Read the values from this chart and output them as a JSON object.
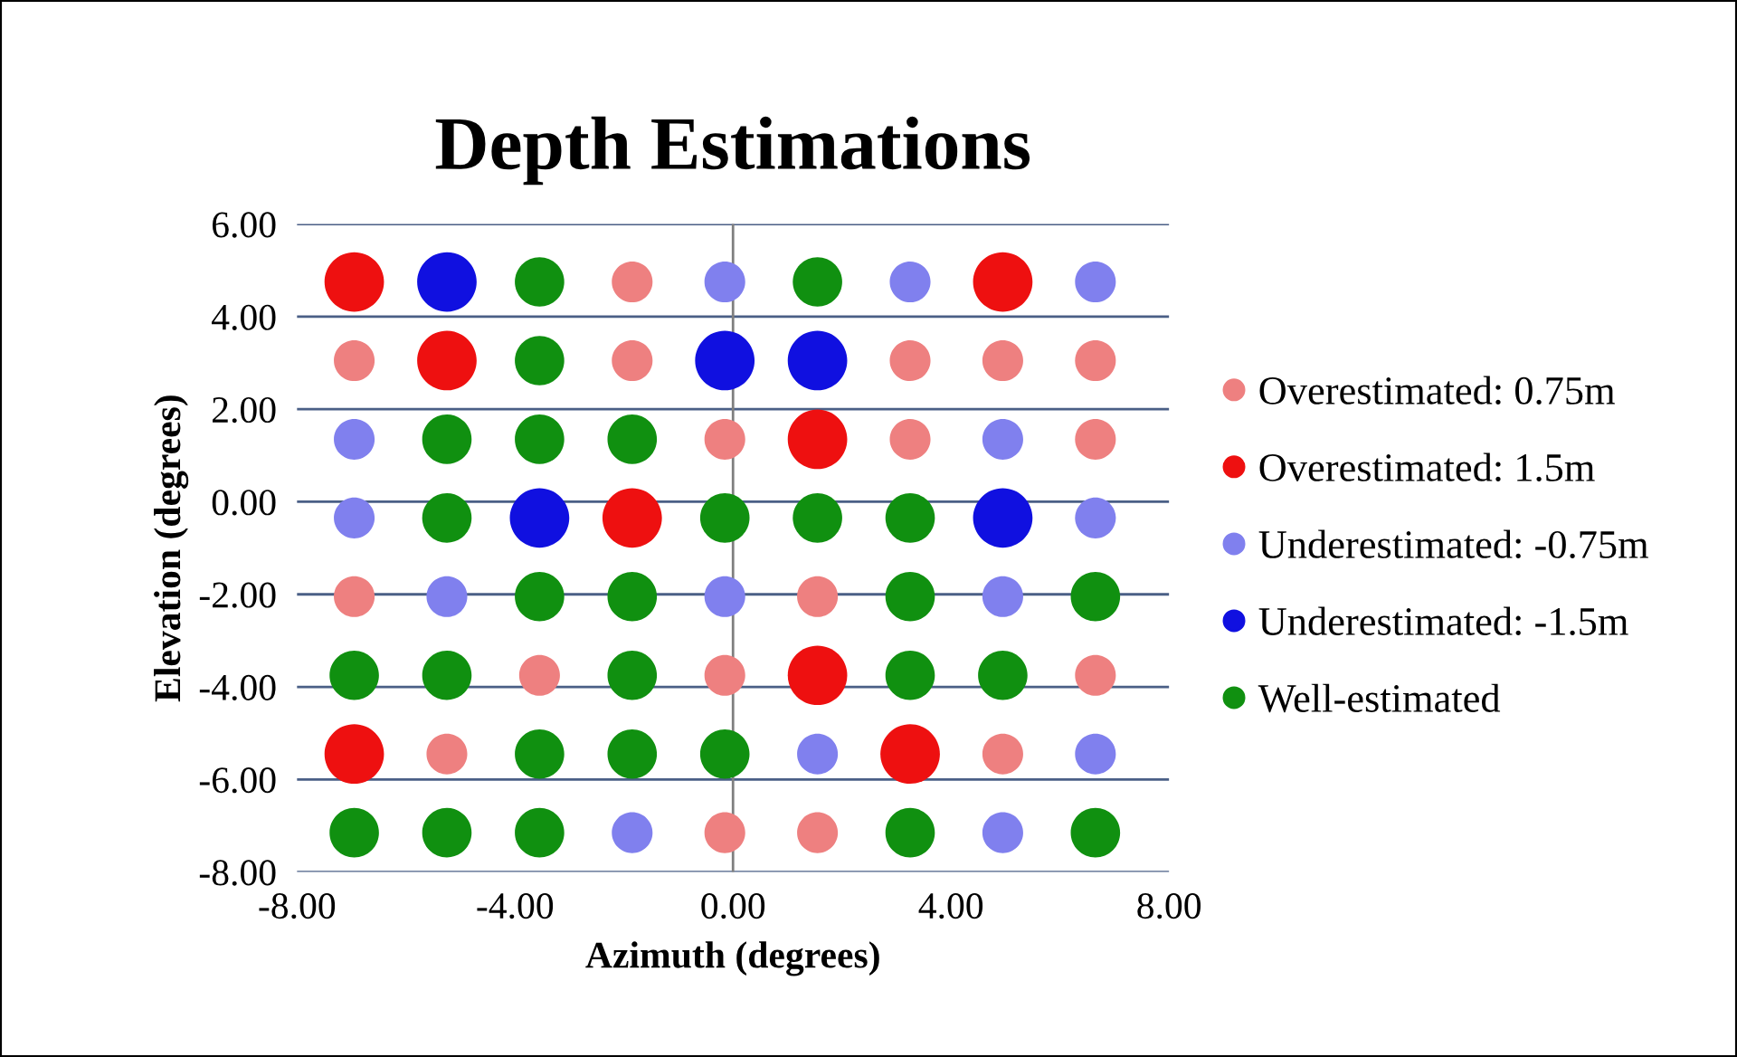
{
  "chart_data": {
    "type": "bubble",
    "title": "Depth Estimations",
    "xlabel": "Azimuth (degrees)",
    "ylabel": "Elevation (degrees)",
    "xlim": [
      -8,
      8
    ],
    "ylim": [
      -8,
      6
    ],
    "xticks": [
      {
        "value": -8,
        "label": "-8.00"
      },
      {
        "value": -4,
        "label": "-4.00"
      },
      {
        "value": 0,
        "label": "0.00"
      },
      {
        "value": 4,
        "label": "4.00"
      },
      {
        "value": 8,
        "label": "8.00"
      }
    ],
    "yticks": [
      {
        "value": -8,
        "label": "-8.00"
      },
      {
        "value": -6,
        "label": "-6.00"
      },
      {
        "value": -4,
        "label": "-4.00"
      },
      {
        "value": -2,
        "label": "-2.00"
      },
      {
        "value": 0,
        "label": "0.00"
      },
      {
        "value": 2,
        "label": "2.00"
      },
      {
        "value": 4,
        "label": "4.00"
      },
      {
        "value": 6,
        "label": "6.00"
      }
    ],
    "grid": "y",
    "legend": "right",
    "marker": "circle",
    "ref_lines": [
      {
        "axis": "x",
        "value": 0,
        "color": "#7f7f7f"
      }
    ],
    "series": [
      {
        "name": "Overestimated: 0.75m",
        "color": "#ee8080",
        "x": [
          -1.85,
          -6.95,
          -1.85,
          3.25,
          4.95,
          6.65,
          -0.15,
          3.25,
          6.65,
          -6.95,
          1.55,
          -3.55,
          -0.15,
          6.65,
          -5.25,
          4.95,
          -0.15,
          1.55
        ],
        "values": [
          4.75,
          3.05,
          3.05,
          3.05,
          3.05,
          3.05,
          1.35,
          1.35,
          1.35,
          -2.05,
          -2.05,
          -3.75,
          -3.75,
          -3.75,
          -5.45,
          -5.45,
          -7.15,
          -7.15
        ],
        "sizes": [
          0.47,
          0.47,
          0.47,
          0.47,
          0.47,
          0.47,
          0.47,
          0.47,
          0.47,
          0.47,
          0.47,
          0.47,
          0.47,
          0.47,
          0.47,
          0.47,
          0.47,
          0.47
        ]
      },
      {
        "name": "Overestimated: 1.5m",
        "color": "#ee1010",
        "x": [
          -6.95,
          4.95,
          -5.25,
          1.55,
          -1.85,
          1.55,
          -6.95,
          3.25
        ],
        "values": [
          4.75,
          4.75,
          3.05,
          1.35,
          -0.35,
          -3.75,
          -5.45,
          -5.45
        ],
        "sizes": [
          1,
          1,
          1,
          1,
          1,
          1,
          1,
          1
        ]
      },
      {
        "name": "Underestimated: -0.75m",
        "color": "#8080ee",
        "x": [
          -0.15,
          3.25,
          6.65,
          -6.95,
          4.95,
          -6.95,
          6.65,
          -5.25,
          -0.15,
          4.95,
          1.55,
          6.65,
          -1.85,
          4.95
        ],
        "values": [
          4.75,
          4.75,
          4.75,
          1.35,
          1.35,
          -0.35,
          -0.35,
          -2.05,
          -2.05,
          -2.05,
          -5.45,
          -5.45,
          -7.15,
          -7.15
        ],
        "sizes": [
          0.47,
          0.47,
          0.47,
          0.47,
          0.47,
          0.47,
          0.47,
          0.47,
          0.47,
          0.47,
          0.47,
          0.47,
          0.47,
          0.47
        ]
      },
      {
        "name": "Underestimated: -1.5m",
        "color": "#1010e0",
        "x": [
          -5.25,
          -0.15,
          1.55,
          -3.55,
          4.95
        ],
        "values": [
          4.75,
          3.05,
          3.05,
          -0.35,
          -0.35
        ],
        "sizes": [
          1,
          1,
          1,
          1,
          1
        ]
      },
      {
        "name": "Well-estimated",
        "color": "#109010",
        "x": [
          -3.55,
          1.55,
          -3.55,
          -5.25,
          -3.55,
          -1.85,
          -5.25,
          -0.15,
          1.55,
          3.25,
          -3.55,
          -1.85,
          3.25,
          6.65,
          -6.95,
          -5.25,
          -1.85,
          3.25,
          4.95,
          -3.55,
          -1.85,
          -0.15,
          -6.95,
          -5.25,
          -3.55,
          3.25,
          6.65
        ],
        "values": [
          4.75,
          4.75,
          3.05,
          1.35,
          1.35,
          1.35,
          -0.35,
          -0.35,
          -0.35,
          -0.35,
          -2.05,
          -2.05,
          -2.05,
          -2.05,
          -3.75,
          -3.75,
          -3.75,
          -3.75,
          -3.75,
          -5.45,
          -5.45,
          -5.45,
          -7.15,
          -7.15,
          -7.15,
          -7.15,
          -7.15
        ],
        "sizes": [
          0.69,
          0.69,
          0.69,
          0.69,
          0.69,
          0.69,
          0.69,
          0.69,
          0.69,
          0.69,
          0.69,
          0.69,
          0.69,
          0.69,
          0.69,
          0.69,
          0.69,
          0.69,
          0.69,
          0.69,
          0.69,
          0.69,
          0.69,
          0.69,
          0.69,
          0.69,
          0.69
        ]
      }
    ]
  }
}
